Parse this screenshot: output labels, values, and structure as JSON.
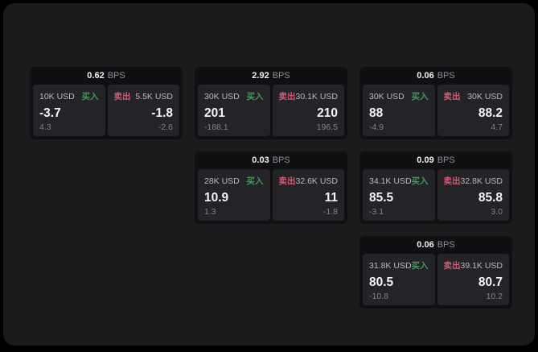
{
  "labels": {
    "bps_suffix": "BPS",
    "buy": "买入",
    "sell": "卖出"
  },
  "colors": {
    "outer_bg": "#000000",
    "page_bg": "#1b1b1d",
    "card_bg": "#101012",
    "panel_bg": "#232328",
    "buy_green": "#44995a",
    "sell_red": "#d45a74"
  },
  "cards": [
    {
      "bps": "0.62",
      "row": 1,
      "col": 1,
      "buy": {
        "size": "10K USD",
        "value": "-3.7",
        "sub": "4.3"
      },
      "sell": {
        "size": "5.5K USD",
        "value": "-1.8",
        "sub": "-2.6"
      }
    },
    {
      "bps": "2.92",
      "row": 1,
      "col": 2,
      "buy": {
        "size": "30K USD",
        "value": "201",
        "sub": "-188.1"
      },
      "sell": {
        "size": "30.1K USD",
        "value": "210",
        "sub": "196.5"
      }
    },
    {
      "bps": "0.06",
      "row": 1,
      "col": 3,
      "buy": {
        "size": "30K USD",
        "value": "88",
        "sub": "-4.9"
      },
      "sell": {
        "size": "30K USD",
        "value": "88.2",
        "sub": "4.7"
      }
    },
    {
      "bps": "0.03",
      "row": 2,
      "col": 2,
      "buy": {
        "size": "28K USD",
        "value": "10.9",
        "sub": "1.3"
      },
      "sell": {
        "size": "32.6K USD",
        "value": "11",
        "sub": "-1.8"
      }
    },
    {
      "bps": "0.09",
      "row": 2,
      "col": 3,
      "buy": {
        "size": "34.1K USD",
        "value": "85.5",
        "sub": "-3.1"
      },
      "sell": {
        "size": "32.8K USD",
        "value": "85.8",
        "sub": "3.0"
      }
    },
    {
      "bps": "0.06",
      "row": 3,
      "col": 3,
      "buy": {
        "size": "31.8K USD",
        "value": "80.5",
        "sub": "-10.8"
      },
      "sell": {
        "size": "39.1K USD",
        "value": "80.7",
        "sub": "10.2"
      }
    }
  ]
}
